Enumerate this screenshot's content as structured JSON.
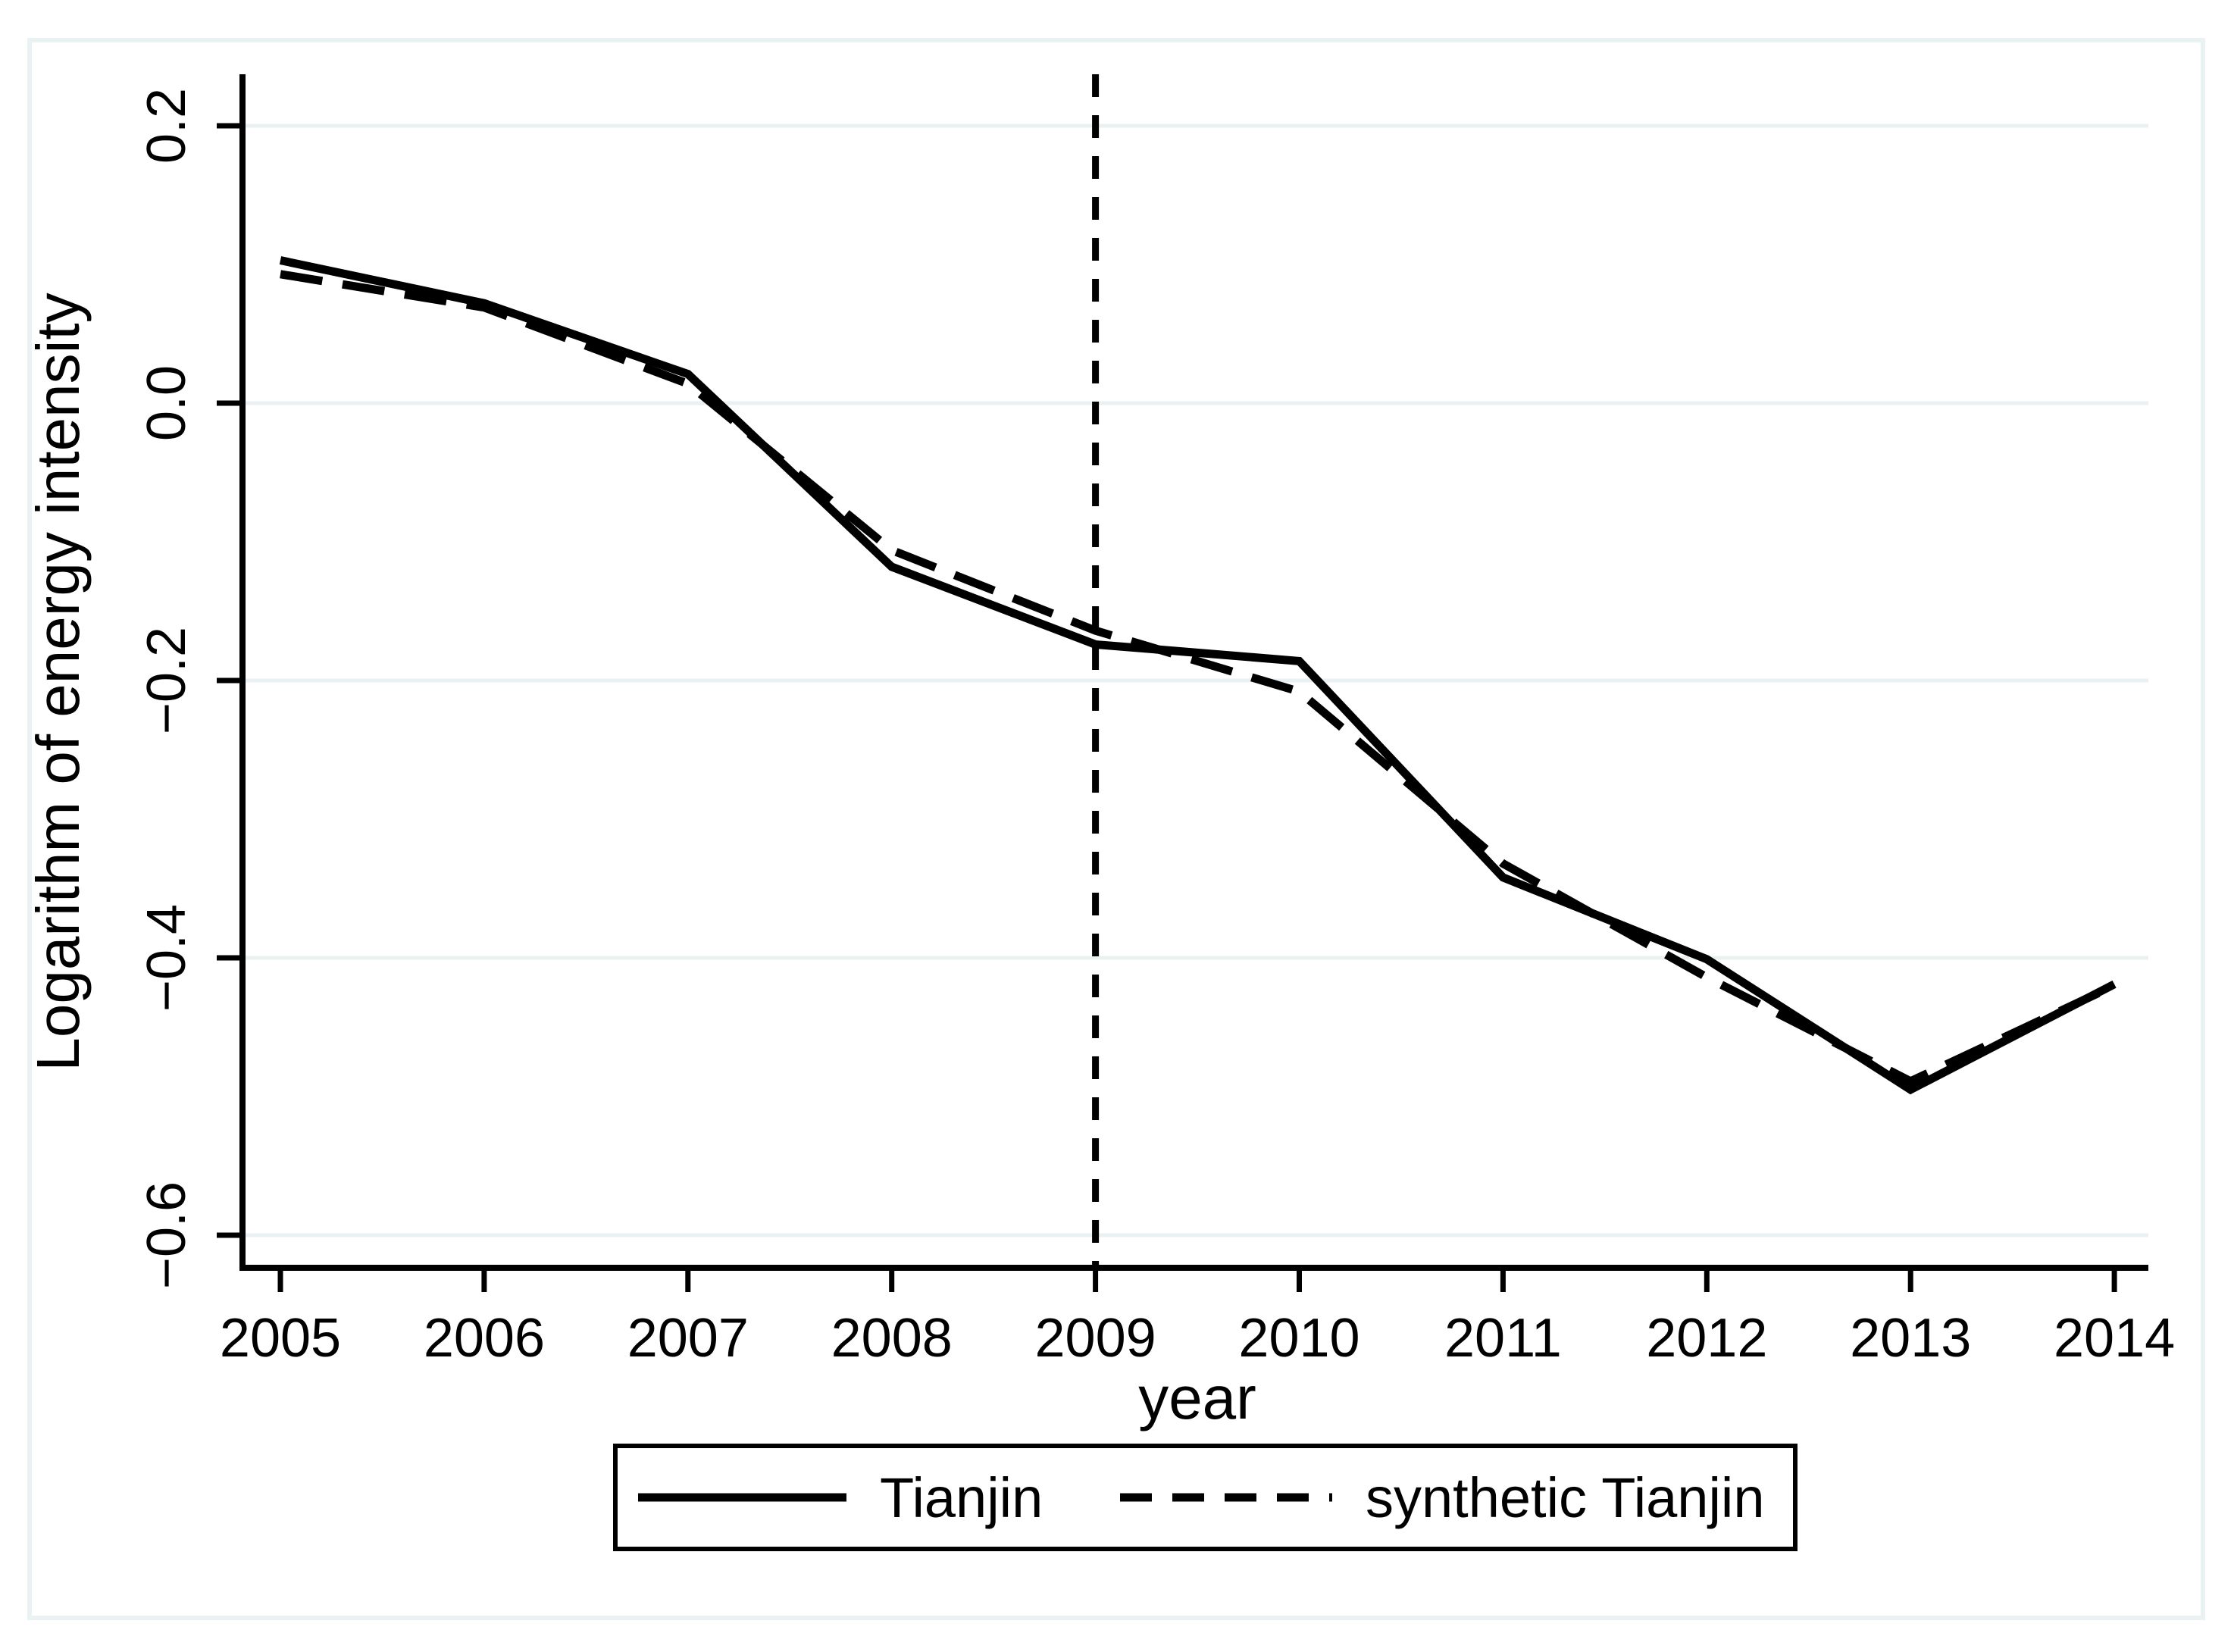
{
  "figure": {
    "background_color": "#ffffff",
    "frame_color": "#eaf2f3",
    "grid_color": "#e9f1f3",
    "axis_color": "#000000",
    "series_color": "#000000"
  },
  "chart_data": {
    "type": "line",
    "title": "",
    "xlabel": "year",
    "ylabel": "Logarithm of energy intensity",
    "x": [
      2005,
      2006,
      2007,
      2008,
      2009,
      2010,
      2011,
      2012,
      2013,
      2014
    ],
    "xtick_labels": [
      "2005",
      "2006",
      "2007",
      "2008",
      "2009",
      "2010",
      "2011",
      "2012",
      "2013",
      "2014"
    ],
    "yticks": [
      0.2,
      0.0,
      -0.2,
      -0.4,
      -0.6
    ],
    "ytick_labels": [
      "0.2",
      "0.0",
      "−0.2",
      "−0.4",
      "−0.6"
    ],
    "ylim": [
      -0.66,
      0.23
    ],
    "grid": true,
    "legend_position": "bottom-center",
    "treatment_line_x": 2009,
    "series": [
      {
        "name": "Tianjin",
        "style": "solid",
        "values": [
          0.103,
          0.072,
          0.021,
          -0.118,
          -0.174,
          -0.186,
          -0.342,
          -0.401,
          -0.495,
          -0.419
        ]
      },
      {
        "name": "synthetic Tianjin",
        "style": "dashed",
        "values": [
          0.093,
          0.069,
          0.014,
          -0.106,
          -0.164,
          -0.208,
          -0.332,
          -0.414,
          -0.489,
          -0.42
        ]
      }
    ]
  },
  "legend": {
    "items": [
      {
        "label": "Tianjin",
        "line_style": "solid"
      },
      {
        "label": "synthetic Tianjin",
        "line_style": "dashed"
      }
    ]
  }
}
